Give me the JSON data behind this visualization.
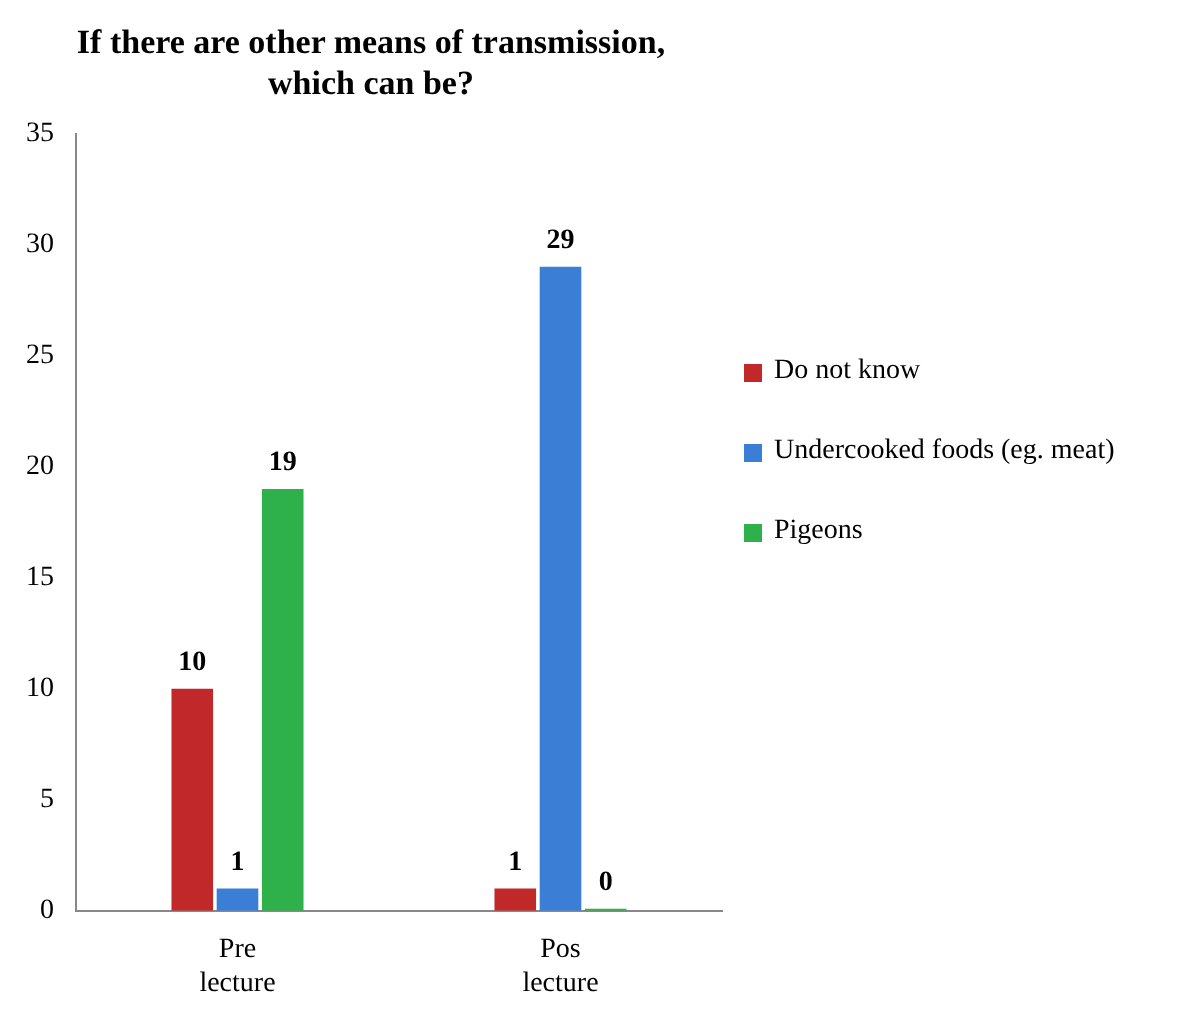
{
  "chart_data": {
    "type": "bar",
    "title": "If there are other means of transmission, which can be?",
    "categories": [
      "Pre lecture",
      "Pos lecture"
    ],
    "series": [
      {
        "name": "Do not know",
        "color": "#c0282a",
        "values": [
          10,
          1
        ]
      },
      {
        "name": "Undercooked foods (eg. meat)",
        "color": "#3a7fd5",
        "values": [
          1,
          29
        ]
      },
      {
        "name": "Pigeons",
        "color": "#2eb04b",
        "values": [
          19,
          0
        ]
      }
    ],
    "ylim": [
      0,
      35
    ],
    "yticks": [
      0,
      5,
      10,
      15,
      20,
      25,
      30,
      35
    ],
    "grid": false,
    "legend": "right",
    "data_labels": true
  }
}
